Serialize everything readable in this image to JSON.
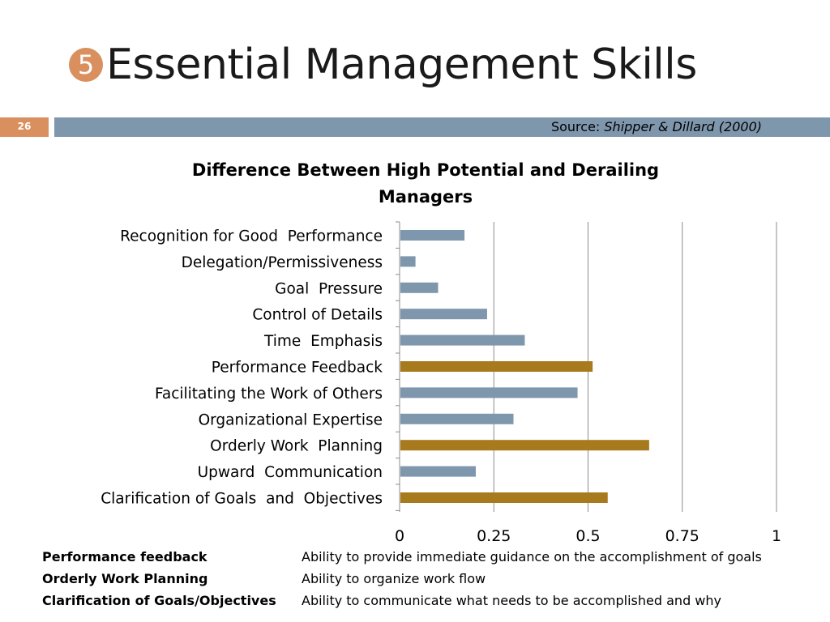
{
  "slide": {
    "bullet": "5",
    "title": "Essential Management Skills",
    "number": "26",
    "source_prefix": "Source: ",
    "source_citation": "Shipper & Dillard (2000)"
  },
  "colors": {
    "accent": "#d98f5e",
    "band": "#7f97ad",
    "bar_default": "#7f97ad",
    "bar_highlight": "#a87a1e",
    "grid": "#8c8c8c"
  },
  "chart_data": {
    "type": "bar",
    "orientation": "horizontal",
    "title": "Difference Between High Potential and Derailing Managers",
    "title_lines": [
      "Difference Between High Potential and Derailing",
      "Managers"
    ],
    "categories": [
      "Recognition for Good  Performance",
      "Delegation/Permissiveness",
      "Goal  Pressure",
      "Control of Details",
      "Time  Emphasis",
      "Performance Feedback",
      "Facilitating the Work of Others",
      "Organizational Expertise",
      "Orderly Work  Planning",
      "Upward  Communication",
      "Clarification of Goals  and  Objectives"
    ],
    "values": [
      0.17,
      0.04,
      0.1,
      0.23,
      0.33,
      0.51,
      0.47,
      0.3,
      0.66,
      0.2,
      0.55
    ],
    "highlighted": [
      "Performance Feedback",
      "Orderly Work  Planning",
      "Clarification of Goals  and  Objectives"
    ],
    "xlim": [
      0,
      1
    ],
    "xticks": [
      0,
      0.25,
      0.5,
      0.75,
      1
    ],
    "xtick_labels": [
      "0",
      "0.25",
      "0.5",
      "0.75",
      "1"
    ],
    "grid": true,
    "legend": "none",
    "xlabel": "",
    "ylabel": ""
  },
  "definitions": [
    {
      "term": "Performance feedback",
      "definition": "Ability to provide immediate guidance on the accomplishment of goals"
    },
    {
      "term": "Orderly Work Planning",
      "definition": "Ability to organize work flow"
    },
    {
      "term": "Clarification of Goals/Objectives",
      "definition": "Ability to communicate what needs to be accomplished and why"
    }
  ]
}
